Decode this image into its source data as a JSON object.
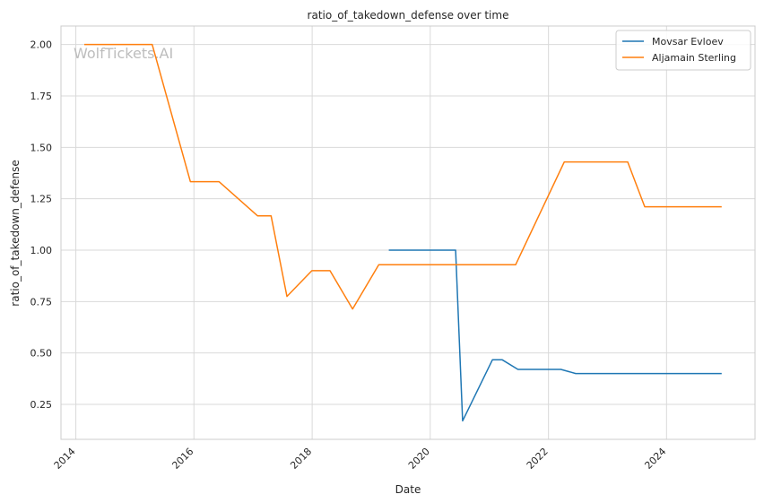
{
  "chart_data": {
    "type": "line",
    "title": "ratio_of_takedown_defense over time",
    "xlabel": "Date",
    "ylabel": "ratio_of_takedown_defense",
    "watermark": "WolfTickets.AI",
    "xlim": [
      "2013-10-01",
      "2025-07-01"
    ],
    "ylim": [
      0.08,
      2.09
    ],
    "x_ticks": [
      "2014-01-01",
      "2016-01-01",
      "2018-01-01",
      "2020-01-01",
      "2022-01-01",
      "2024-01-01"
    ],
    "x_tick_labels": [
      "2014",
      "2016",
      "2018",
      "2020",
      "2022",
      "2024"
    ],
    "y_ticks": [
      0.25,
      0.5,
      0.75,
      1.0,
      1.25,
      1.5,
      1.75,
      2.0
    ],
    "y_tick_labels": [
      "0.25",
      "0.50",
      "0.75",
      "1.00",
      "1.25",
      "1.50",
      "1.75",
      "2.00"
    ],
    "grid": true,
    "legend_position": "top-right",
    "series": [
      {
        "name": "Movsar Evloev",
        "color": "#1f77b4",
        "points": [
          [
            "2019-04-20",
            1.0
          ],
          [
            "2020-06-06",
            1.0
          ],
          [
            "2020-07-19",
            0.17
          ],
          [
            "2021-01-20",
            0.467
          ],
          [
            "2021-03-20",
            0.467
          ],
          [
            "2021-06-26",
            0.42
          ],
          [
            "2022-03-19",
            0.42
          ],
          [
            "2022-06-18",
            0.4
          ],
          [
            "2024-12-07",
            0.4
          ]
        ]
      },
      {
        "name": "Aljamain Sterling",
        "color": "#ff7f0e",
        "points": [
          [
            "2014-02-22",
            2.0
          ],
          [
            "2015-04-18",
            2.0
          ],
          [
            "2015-12-10",
            1.333
          ],
          [
            "2016-06-04",
            1.333
          ],
          [
            "2017-01-28",
            1.167
          ],
          [
            "2017-04-22",
            1.167
          ],
          [
            "2017-07-29",
            0.775
          ],
          [
            "2017-12-30",
            0.9
          ],
          [
            "2018-04-21",
            0.9
          ],
          [
            "2018-09-08",
            0.714
          ],
          [
            "2019-02-17",
            0.929
          ],
          [
            "2021-06-12",
            0.929
          ],
          [
            "2022-04-09",
            1.429
          ],
          [
            "2023-05-06",
            1.429
          ],
          [
            "2023-08-19",
            1.211
          ],
          [
            "2024-12-07",
            1.211
          ]
        ]
      }
    ]
  }
}
